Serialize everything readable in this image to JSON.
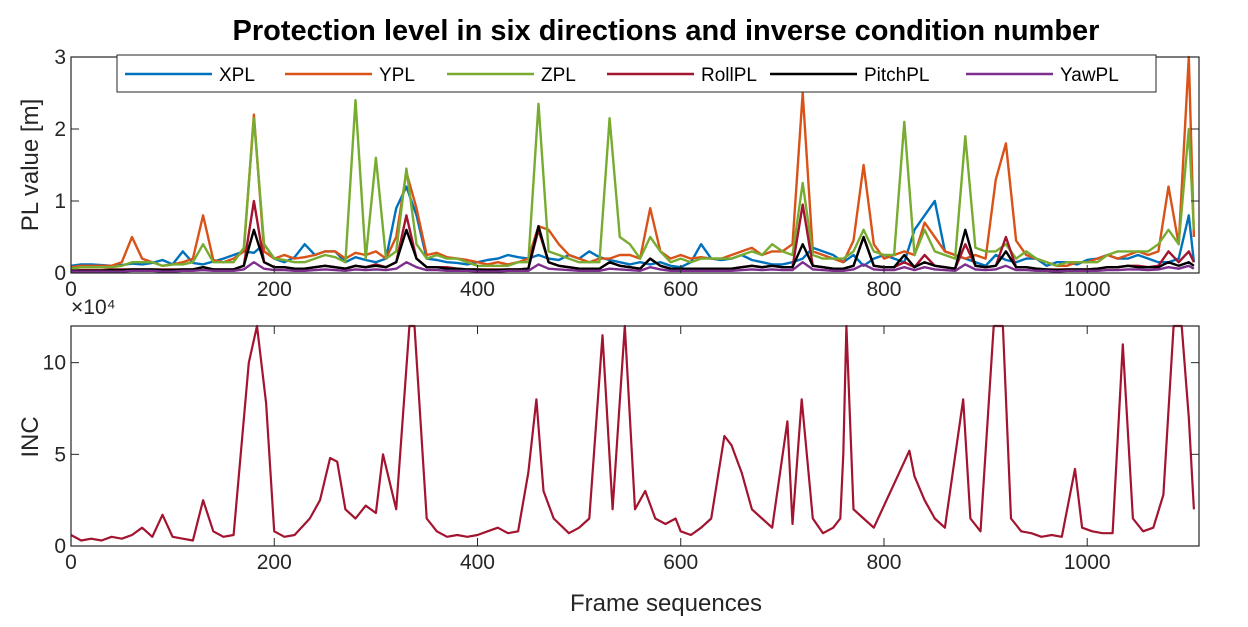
{
  "chart_data": [
    {
      "type": "line",
      "title": "Protection level in six directions and inverse condition number",
      "xlabel": "",
      "ylabel": "PL value [m]",
      "xlim": [
        0,
        1110
      ],
      "ylim": [
        0,
        3
      ],
      "xticks": [
        0,
        200,
        400,
        600,
        800,
        1000
      ],
      "yticks": [
        0,
        1,
        2,
        3
      ],
      "x_exponent_label": "×10⁴",
      "legend_position": "top",
      "colors": {
        "XPL": "#0072BD",
        "YPL": "#D95319",
        "ZPL": "#77AC30",
        "RollPL": "#A2142F",
        "PitchPL": "#000000",
        "YawPL": "#7E2F8E"
      },
      "series": [
        {
          "name": "XPL",
          "values": [
            0.1,
            0.12,
            0.12,
            0.11,
            0.1,
            0.11,
            0.13,
            0.12,
            0.14,
            0.18,
            0.12,
            0.3,
            0.14,
            0.12,
            0.16,
            0.2,
            0.25,
            0.3,
            0.28,
            0.4,
            0.2,
            0.15,
            0.22,
            0.4,
            0.25,
            0.3,
            0.3,
            0.15,
            0.22,
            0.18,
            0.15,
            0.2,
            0.9,
            1.2,
            0.8,
            0.2,
            0.18,
            0.15,
            0.14,
            0.12,
            0.15,
            0.18,
            0.2,
            0.25,
            0.22,
            0.2,
            0.25,
            0.2,
            0.18,
            0.25,
            0.2,
            0.3,
            0.22,
            0.18,
            0.15,
            0.12,
            0.15,
            0.12,
            0.15,
            0.1,
            0.08,
            0.15,
            0.4,
            0.2,
            0.18,
            0.2,
            0.25,
            0.18,
            0.15,
            0.12,
            0.12,
            0.15,
            0.2,
            0.35,
            0.3,
            0.25,
            0.15,
            0.25,
            0.1,
            0.2,
            0.25,
            0.2,
            0.15,
            0.6,
            0.8,
            1.0,
            0.3,
            0.25,
            0.2,
            0.15,
            0.1,
            0.25,
            0.18,
            0.15,
            0.2,
            0.2,
            0.1,
            0.15,
            0.15,
            0.12,
            0.18,
            0.2,
            0.25,
            0.2,
            0.2,
            0.25,
            0.2,
            0.15,
            0.15,
            0.2,
            0.8,
            0.15
          ]
        },
        {
          "name": "YPL",
          "values": [
            0.08,
            0.1,
            0.1,
            0.1,
            0.1,
            0.15,
            0.5,
            0.2,
            0.15,
            0.1,
            0.12,
            0.15,
            0.2,
            0.8,
            0.18,
            0.15,
            0.2,
            0.3,
            2.2,
            0.3,
            0.2,
            0.25,
            0.2,
            0.22,
            0.25,
            0.3,
            0.3,
            0.2,
            0.28,
            0.25,
            0.3,
            0.2,
            0.5,
            1.4,
            0.9,
            0.25,
            0.28,
            0.22,
            0.2,
            0.18,
            0.15,
            0.12,
            0.15,
            0.12,
            0.15,
            0.2,
            0.65,
            0.6,
            0.4,
            0.25,
            0.2,
            0.15,
            0.2,
            0.2,
            0.25,
            0.25,
            0.2,
            0.9,
            0.3,
            0.2,
            0.25,
            0.2,
            0.22,
            0.2,
            0.2,
            0.25,
            0.3,
            0.35,
            0.25,
            0.3,
            0.3,
            0.4,
            2.5,
            0.3,
            0.25,
            0.2,
            0.15,
            0.45,
            1.5,
            0.4,
            0.2,
            0.25,
            0.3,
            0.25,
            0.7,
            0.5,
            0.3,
            0.25,
            0.2,
            0.25,
            0.2,
            1.3,
            1.8,
            0.45,
            0.25,
            0.2,
            0.15,
            0.1,
            0.1,
            0.15,
            0.15,
            0.2,
            0.25,
            0.2,
            0.25,
            0.3,
            0.25,
            0.3,
            1.2,
            0.4,
            3.0,
            0.5
          ]
        },
        {
          "name": "ZPL",
          "values": [
            0.06,
            0.08,
            0.08,
            0.08,
            0.08,
            0.1,
            0.15,
            0.15,
            0.15,
            0.1,
            0.12,
            0.12,
            0.15,
            0.4,
            0.15,
            0.15,
            0.15,
            0.35,
            2.15,
            0.4,
            0.2,
            0.18,
            0.15,
            0.15,
            0.2,
            0.25,
            0.22,
            0.15,
            2.4,
            0.2,
            1.6,
            0.2,
            0.3,
            1.45,
            0.4,
            0.2,
            0.25,
            0.2,
            0.2,
            0.15,
            0.1,
            0.1,
            0.1,
            0.1,
            0.15,
            0.15,
            2.35,
            0.3,
            0.25,
            0.2,
            0.15,
            0.15,
            0.15,
            2.15,
            0.5,
            0.4,
            0.2,
            0.5,
            0.3,
            0.15,
            0.2,
            0.15,
            0.2,
            0.2,
            0.2,
            0.2,
            0.25,
            0.3,
            0.25,
            0.4,
            0.3,
            0.25,
            1.25,
            0.25,
            0.2,
            0.2,
            0.2,
            0.3,
            0.6,
            0.3,
            0.25,
            0.25,
            2.1,
            0.25,
            0.6,
            0.3,
            0.25,
            0.2,
            1.9,
            0.35,
            0.3,
            0.3,
            0.4,
            0.2,
            0.3,
            0.2,
            0.15,
            0.1,
            0.15,
            0.15,
            0.15,
            0.15,
            0.25,
            0.3,
            0.3,
            0.3,
            0.3,
            0.4,
            0.6,
            0.4,
            2.0,
            0.6
          ]
        },
        {
          "name": "RollPL",
          "values": [
            0.03,
            0.04,
            0.04,
            0.04,
            0.05,
            0.05,
            0.05,
            0.05,
            0.05,
            0.05,
            0.05,
            0.05,
            0.05,
            0.08,
            0.05,
            0.05,
            0.05,
            0.1,
            1.0,
            0.15,
            0.08,
            0.08,
            0.06,
            0.06,
            0.08,
            0.1,
            0.08,
            0.06,
            0.1,
            0.08,
            0.12,
            0.08,
            0.15,
            0.8,
            0.2,
            0.08,
            0.08,
            0.08,
            0.06,
            0.05,
            0.05,
            0.05,
            0.05,
            0.05,
            0.05,
            0.06,
            0.6,
            0.15,
            0.1,
            0.08,
            0.06,
            0.06,
            0.06,
            0.15,
            0.1,
            0.08,
            0.06,
            0.2,
            0.1,
            0.06,
            0.06,
            0.06,
            0.06,
            0.06,
            0.06,
            0.06,
            0.08,
            0.1,
            0.08,
            0.1,
            0.08,
            0.08,
            0.95,
            0.1,
            0.08,
            0.06,
            0.06,
            0.1,
            0.5,
            0.1,
            0.08,
            0.08,
            0.15,
            0.08,
            0.25,
            0.1,
            0.08,
            0.06,
            0.4,
            0.1,
            0.08,
            0.1,
            0.5,
            0.08,
            0.08,
            0.06,
            0.05,
            0.05,
            0.05,
            0.05,
            0.05,
            0.06,
            0.08,
            0.08,
            0.1,
            0.1,
            0.08,
            0.1,
            0.3,
            0.15,
            0.3,
            0.15
          ]
        },
        {
          "name": "PitchPL",
          "values": [
            0.03,
            0.03,
            0.03,
            0.03,
            0.04,
            0.04,
            0.05,
            0.05,
            0.05,
            0.04,
            0.04,
            0.05,
            0.05,
            0.08,
            0.05,
            0.05,
            0.05,
            0.1,
            0.6,
            0.15,
            0.08,
            0.08,
            0.06,
            0.06,
            0.08,
            0.1,
            0.08,
            0.06,
            0.1,
            0.08,
            0.1,
            0.08,
            0.15,
            0.6,
            0.2,
            0.08,
            0.08,
            0.06,
            0.06,
            0.05,
            0.05,
            0.04,
            0.04,
            0.05,
            0.05,
            0.06,
            0.65,
            0.15,
            0.1,
            0.08,
            0.06,
            0.06,
            0.06,
            0.15,
            0.1,
            0.08,
            0.06,
            0.2,
            0.1,
            0.06,
            0.06,
            0.06,
            0.06,
            0.06,
            0.06,
            0.06,
            0.08,
            0.1,
            0.08,
            0.1,
            0.08,
            0.08,
            0.4,
            0.1,
            0.08,
            0.06,
            0.06,
            0.1,
            0.5,
            0.1,
            0.08,
            0.08,
            0.25,
            0.08,
            0.15,
            0.1,
            0.08,
            0.06,
            0.6,
            0.1,
            0.08,
            0.1,
            0.3,
            0.08,
            0.08,
            0.06,
            0.05,
            0.04,
            0.05,
            0.05,
            0.05,
            0.06,
            0.08,
            0.08,
            0.1,
            0.08,
            0.08,
            0.08,
            0.15,
            0.1,
            0.15,
            0.1
          ]
        },
        {
          "name": "YawPL",
          "values": [
            0.02,
            0.02,
            0.02,
            0.02,
            0.02,
            0.02,
            0.03,
            0.03,
            0.03,
            0.02,
            0.02,
            0.03,
            0.03,
            0.04,
            0.03,
            0.03,
            0.03,
            0.05,
            0.15,
            0.06,
            0.04,
            0.04,
            0.03,
            0.03,
            0.04,
            0.05,
            0.04,
            0.03,
            0.05,
            0.04,
            0.05,
            0.04,
            0.06,
            0.15,
            0.08,
            0.04,
            0.04,
            0.03,
            0.03,
            0.03,
            0.02,
            0.02,
            0.02,
            0.03,
            0.03,
            0.03,
            0.12,
            0.06,
            0.05,
            0.04,
            0.03,
            0.03,
            0.03,
            0.06,
            0.05,
            0.04,
            0.03,
            0.08,
            0.05,
            0.03,
            0.03,
            0.03,
            0.03,
            0.03,
            0.03,
            0.03,
            0.04,
            0.05,
            0.04,
            0.05,
            0.04,
            0.04,
            0.15,
            0.05,
            0.04,
            0.03,
            0.03,
            0.05,
            0.12,
            0.05,
            0.04,
            0.04,
            0.08,
            0.04,
            0.08,
            0.05,
            0.04,
            0.03,
            0.12,
            0.05,
            0.04,
            0.05,
            0.1,
            0.04,
            0.04,
            0.03,
            0.03,
            0.02,
            0.03,
            0.03,
            0.03,
            0.03,
            0.04,
            0.04,
            0.05,
            0.05,
            0.04,
            0.05,
            0.08,
            0.06,
            0.1,
            0.06
          ]
        }
      ],
      "x": [
        0,
        10,
        20,
        30,
        40,
        50,
        60,
        70,
        80,
        90,
        100,
        110,
        120,
        130,
        140,
        150,
        160,
        170,
        180,
        190,
        200,
        210,
        220,
        230,
        240,
        250,
        260,
        270,
        280,
        290,
        300,
        310,
        320,
        330,
        340,
        350,
        360,
        370,
        380,
        390,
        400,
        410,
        420,
        430,
        440,
        450,
        460,
        470,
        480,
        490,
        500,
        510,
        520,
        530,
        540,
        550,
        560,
        570,
        580,
        590,
        600,
        610,
        620,
        630,
        640,
        650,
        660,
        670,
        680,
        690,
        700,
        710,
        720,
        730,
        740,
        750,
        760,
        770,
        780,
        790,
        800,
        810,
        820,
        830,
        840,
        850,
        860,
        870,
        880,
        890,
        900,
        910,
        920,
        930,
        940,
        950,
        960,
        970,
        980,
        990,
        1000,
        1010,
        1020,
        1030,
        1040,
        1050,
        1060,
        1070,
        1080,
        1090,
        1100,
        1105
      ]
    },
    {
      "type": "line",
      "title": "",
      "xlabel": "Frame sequences",
      "ylabel": "INC",
      "xlim": [
        0,
        1110
      ],
      "ylim": [
        0,
        12
      ],
      "xticks": [
        0,
        200,
        400,
        600,
        800,
        1000
      ],
      "yticks": [
        0,
        5,
        10
      ],
      "colors": {
        "INC": "#A2142F"
      },
      "series": [
        {
          "name": "",
          "values": [
            0.6,
            0.3,
            0.4,
            0.3,
            0.5,
            0.4,
            0.6,
            1.0,
            0.5,
            1.7,
            0.5,
            0.4,
            0.3,
            2.5,
            0.8,
            0.5,
            0.6,
            10.0,
            12.0,
            7.8,
            0.8,
            0.5,
            0.6,
            1.5,
            2.5,
            4.8,
            4.6,
            2.0,
            1.5,
            2.2,
            1.8,
            5.0,
            2.0,
            12.0,
            12.0,
            1.5,
            0.8,
            0.5,
            0.6,
            0.5,
            0.6,
            0.8,
            1.0,
            0.7,
            0.8,
            4.0,
            8.0,
            3.0,
            1.5,
            0.7,
            1.0,
            1.5,
            11.5,
            2.0,
            12.0,
            2.0,
            3.0,
            1.5,
            1.2,
            1.5,
            0.8,
            0.6,
            1.0,
            1.5,
            6.0,
            5.5,
            4.0,
            2.0,
            1.5,
            1.0,
            6.8,
            1.2,
            8.0,
            1.5,
            0.7,
            1.0,
            1.5,
            5.0,
            12.0,
            2.0,
            1.5,
            1.0,
            5.2,
            3.8,
            2.5,
            1.5,
            1.0,
            8.0,
            1.5,
            0.8,
            12.0,
            12.0,
            1.5,
            0.8,
            0.7,
            0.5,
            0.6,
            0.5,
            4.2,
            1.0,
            0.8,
            0.7,
            0.7,
            11.0,
            1.5,
            0.8,
            1.0,
            2.8,
            12.0,
            12.0,
            7.0,
            2.0
          ]
        }
      ],
      "x": [
        0,
        10,
        20,
        30,
        40,
        50,
        60,
        70,
        80,
        90,
        100,
        110,
        120,
        130,
        140,
        150,
        160,
        175,
        183,
        192,
        200,
        210,
        220,
        235,
        245,
        255,
        262,
        270,
        280,
        290,
        300,
        307,
        320,
        333,
        338,
        350,
        360,
        370,
        380,
        390,
        400,
        410,
        420,
        430,
        440,
        450,
        458,
        465,
        475,
        490,
        500,
        510,
        523,
        533,
        545,
        555,
        565,
        575,
        585,
        595,
        600,
        610,
        620,
        630,
        643,
        650,
        660,
        670,
        680,
        690,
        705,
        710,
        719,
        730,
        740,
        750,
        757,
        760,
        763,
        770,
        780,
        790,
        825,
        830,
        840,
        850,
        860,
        878,
        885,
        895,
        908,
        917,
        925,
        935,
        945,
        955,
        965,
        975,
        988,
        995,
        1005,
        1015,
        1025,
        1035,
        1045,
        1055,
        1065,
        1075,
        1085,
        1093,
        1100,
        1105
      ]
    }
  ]
}
